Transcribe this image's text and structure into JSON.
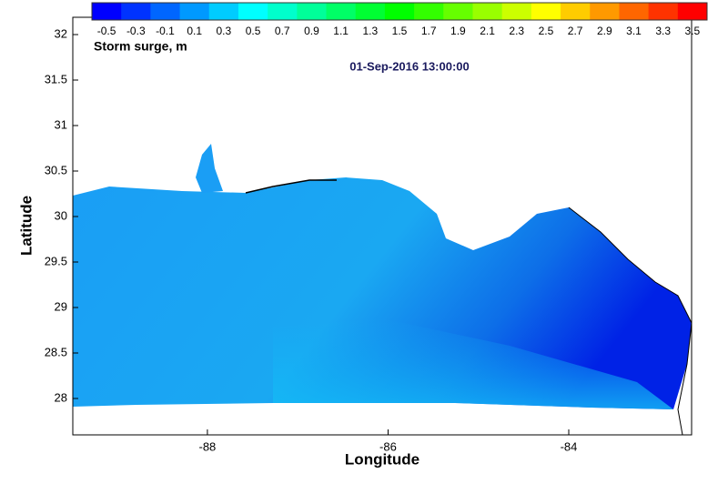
{
  "title": "01-Sep-2016 13:00:00",
  "colorbar": {
    "label": "Storm surge, m",
    "ticks": [
      -0.5,
      -0.3,
      -0.1,
      0.1,
      0.3,
      0.5,
      0.7,
      0.9,
      1.1,
      1.3,
      1.5,
      1.7,
      1.9,
      2.1,
      2.3,
      2.5,
      2.7,
      2.9,
      3.1,
      3.3,
      3.5
    ],
    "colors": [
      "#0000ff",
      "#0033ff",
      "#0066ff",
      "#0099ff",
      "#00ccff",
      "#00ffff",
      "#00ffcc",
      "#00ff99",
      "#00ff66",
      "#00ff33",
      "#00ff00",
      "#33ff00",
      "#66ff00",
      "#99ff00",
      "#ccff00",
      "#ffff00",
      "#ffcc00",
      "#ff9900",
      "#ff6600",
      "#ff3300",
      "#ff0000"
    ]
  },
  "x_axis": {
    "label": "Longitude",
    "lim": [
      -89.49,
      -82.64
    ],
    "ticks": [
      -88,
      -86,
      -84
    ]
  },
  "y_axis": {
    "label": "Latitude",
    "lim": [
      27.6,
      32.19
    ],
    "ticks": [
      28,
      28.5,
      29,
      29.5,
      30,
      30.5,
      31,
      31.5,
      32
    ]
  }
}
